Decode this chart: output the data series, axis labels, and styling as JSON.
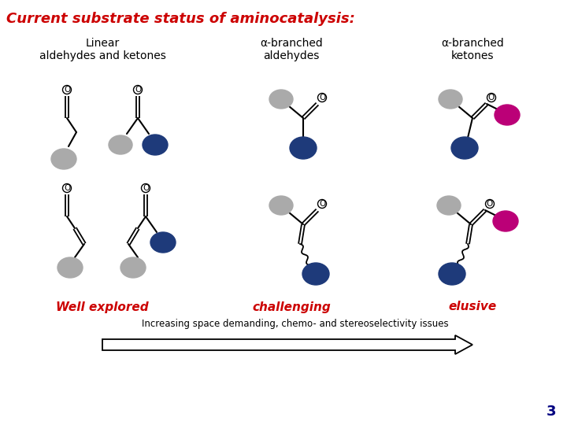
{
  "title": "Current substrate status of aminocatalysis:",
  "title_color": "#CC0000",
  "title_fontsize": 13,
  "bg_color": "#FFFFFF",
  "col1_header": "Linear\naldehydes and ketones",
  "col2_header": "α-branched\naldehydes",
  "col3_header": "α-branched\nketones",
  "header_color": "#000000",
  "header_fontsize": 10,
  "col1_footer": "Well explored",
  "col2_footer": "challenging",
  "col3_footer": "elusive",
  "footer_color": "#CC0000",
  "footer_fontsize": 11,
  "arrow_text": "Increasing space demanding, chemo- and stereoselectivity issues",
  "arrow_text_fontsize": 8.5,
  "page_number": "3",
  "page_number_color": "#000080",
  "gray_color": "#AAAAAA",
  "blue_color": "#1E3A7A",
  "magenta_color": "#BB0077"
}
